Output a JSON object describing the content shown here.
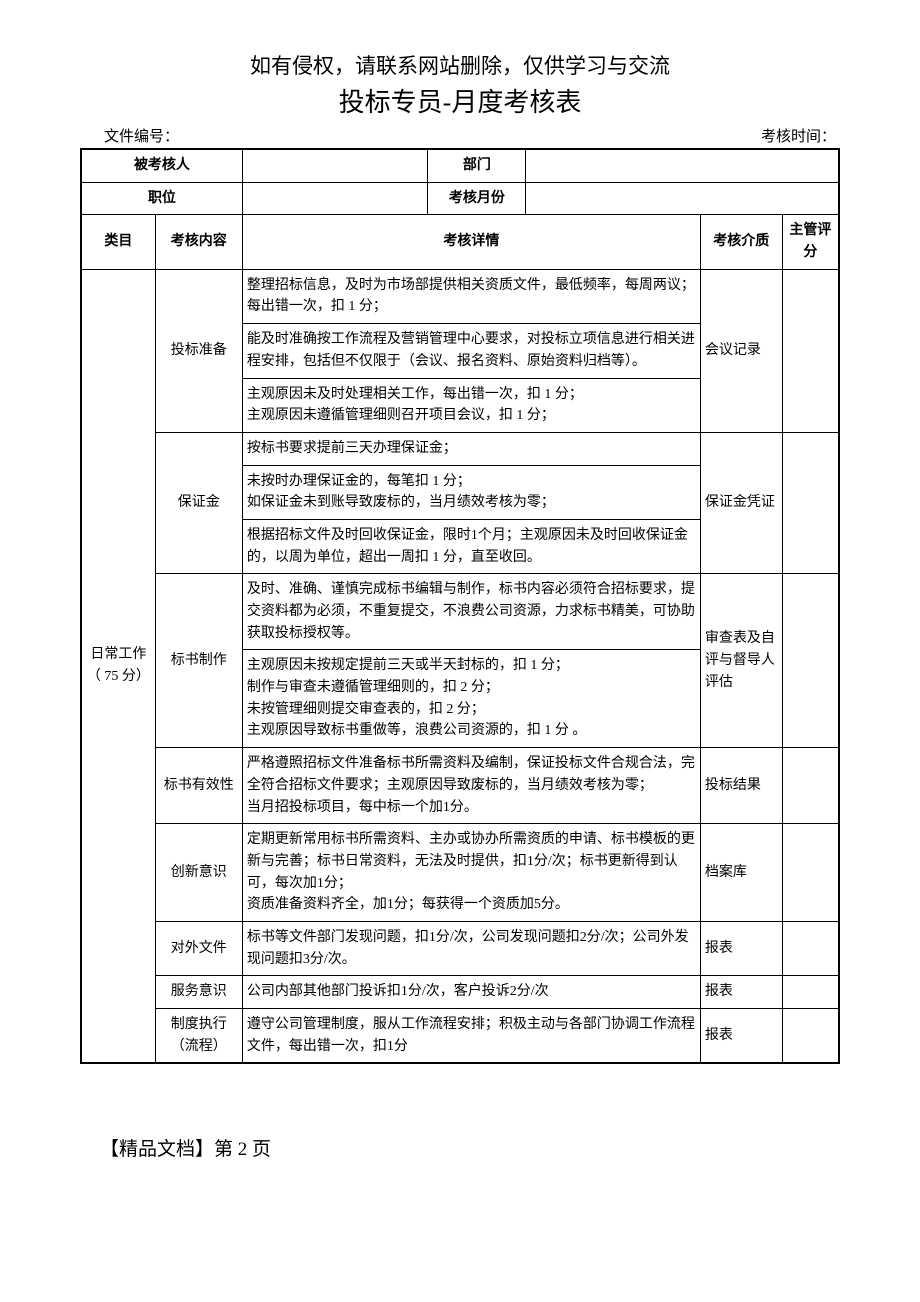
{
  "disclaimer": "如有侵权，请联系网站删除，仅供学习与交流",
  "title": "投标专员-月度考核表",
  "meta": {
    "file_no_label": "文件编号：",
    "assess_time_label": "考核时间："
  },
  "header_rows": {
    "assessee_label": "被考核人",
    "dept_label": "部门",
    "position_label": "职位",
    "month_label": "考核月份"
  },
  "col_headers": {
    "category": "类目",
    "item": "考核内容",
    "detail": "考核详情",
    "media": "考核介质",
    "score": "主管评分"
  },
  "category": "日常工作（ 75 分）",
  "rows": [
    {
      "item": "投标准备",
      "details": [
        "整理招标信息，及时为市场部提供相关资质文件，最低频率，每周两议；每出错一次，扣 1 分；",
        "能及时准确按工作流程及营销管理中心要求，对投标立项信息进行相关进程安排，包括但不仅限于（会议、报名资料、原始资料归档等）。",
        "主观原因未及时处理相关工作，每出错一次，扣 1 分；\n主观原因未遵循管理细则召开项目会议，扣 1 分；"
      ],
      "media": "会议记录"
    },
    {
      "item": "保证金",
      "details": [
        "按标书要求提前三天办理保证金；",
        "未按时办理保证金的，每笔扣 1 分；\n如保证金未到账导致废标的，当月绩效考核为零；",
        "根据招标文件及时回收保证金，限时1个月；主观原因未及时回收保证金的，以周为单位，超出一周扣 1 分，直至收回。"
      ],
      "media": "保证金凭证"
    },
    {
      "item": "标书制作",
      "details": [
        "及时、准确、谨慎完成标书编辑与制作，标书内容必须符合招标要求，提交资料都为必须，不重复提交，不浪费公司资源，力求标书精美，可协助获取投标授权等。",
        "主观原因未按规定提前三天或半天封标的，扣 1 分；\n制作与审查未遵循管理细则的，扣 2 分；\n未按管理细则提交审查表的，扣 2 分；\n主观原因导致标书重做等，浪费公司资源的，扣 1 分 。"
      ],
      "media": "审查表及自评与督导人评估"
    },
    {
      "item": "标书有效性",
      "details": [
        "严格遵照招标文件准备标书所需资料及编制，保证投标文件合规合法，完全符合招标文件要求；主观原因导致废标的，当月绩效考核为零；\n当月招投标项目，每中标一个加1分。"
      ],
      "media": "投标结果"
    },
    {
      "item": "创新意识",
      "details": [
        "定期更新常用标书所需资料、主办或协办所需资质的申请、标书模板的更新与完善；标书日常资料，无法及时提供，扣1分/次；标书更新得到认可，每次加1分；\n资质准备资料齐全，加1分；每获得一个资质加5分。"
      ],
      "media": "档案库"
    },
    {
      "item": "对外文件",
      "details": [
        "标书等文件部门发现问题，扣1分/次，公司发现问题扣2分/次；公司外发现问题扣3分/次。"
      ],
      "media": "报表"
    },
    {
      "item": "服务意识",
      "details": [
        "公司内部其他部门投诉扣1分/次，客户投诉2分/次"
      ],
      "media": "报表"
    },
    {
      "item": "制度执行（流程）",
      "details": [
        "遵守公司管理制度，服从工作流程安排；积极主动与各部门协调工作流程文件，每出错一次，扣1分"
      ],
      "media": "报表"
    }
  ],
  "footer": "【精品文档】第 2 页"
}
